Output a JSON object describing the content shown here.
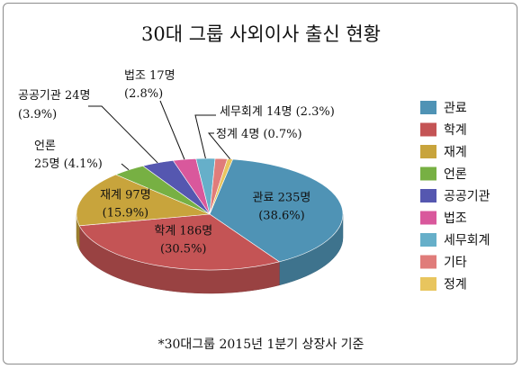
{
  "chart_data": {
    "type": "pie",
    "title": "30대 그룹 사외이사 출신 현황",
    "footnote": "*30대그룹 2015년 1분기 상장사 기준",
    "legend_position": "right",
    "slices": [
      {
        "name": "관료",
        "value": 235,
        "percent": 38.6,
        "color": "#4f93b5",
        "label": "관료 235명",
        "pct_label": "(38.6%)"
      },
      {
        "name": "학계",
        "value": 186,
        "percent": 30.5,
        "color": "#c45455",
        "label": "학계 186명",
        "pct_label": "(30.5%)"
      },
      {
        "name": "재계",
        "value": 97,
        "percent": 15.9,
        "color": "#c8a43c",
        "label": "재계 97명",
        "pct_label": "(15.9%)"
      },
      {
        "name": "언론",
        "value": 25,
        "percent": 4.1,
        "color": "#77b043",
        "label": "언론",
        "label2": "25명 (4.1%)"
      },
      {
        "name": "공공기관",
        "value": 24,
        "percent": 3.9,
        "color": "#5557b0",
        "label": "공공기관 24명",
        "pct_label": "(3.9%)"
      },
      {
        "name": "법조",
        "value": 17,
        "percent": 2.8,
        "color": "#d9589c",
        "label": "법조 17명",
        "pct_label": "(2.8%)"
      },
      {
        "name": "세무회계",
        "value": 14,
        "percent": 2.3,
        "color": "#66afc9",
        "label": "세무회계 14명 (2.3%)"
      },
      {
        "name": "기타",
        "value": 9,
        "percent": 1.5,
        "color": "#e07c7a"
      },
      {
        "name": "정계",
        "value": 4,
        "percent": 0.7,
        "color": "#e8c55e",
        "label": "정계 4명 (0.7%)"
      }
    ]
  }
}
